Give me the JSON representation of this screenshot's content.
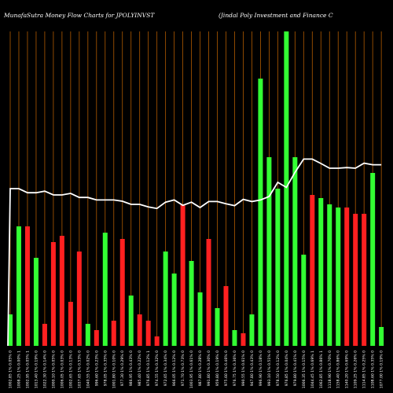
{
  "chart_data": {
    "type": "bar",
    "title": "MunafaSutra  Money Flow  Charts for JPOLYINVST",
    "subtitle": "(Jindal Poly Investment and Finance  C",
    "ylim": [
      0,
      100
    ],
    "grid": true,
    "categories": [
      "1002.85 1% 0.05% 0",
      "1008.25 1% 0.00% 1",
      "1002.95 1% 0.05% 1",
      "1013.40 1% 0.19% 0",
      "1022.30 1% 0.14% 0",
      "1000.10 1% 0.05% 0",
      "1006.05 1% 0.03% 0",
      "1002.65 1% 0.13% 0",
      "1037.65 1% 0.53% 0",
      "1040.55 1% 0.02% 0",
      "996.60 1% 0.23% 0",
      "978.05 1% 0.35% 0",
      "1001.80 1% 0.10% 0",
      "977.30 1% 0.29% 0",
      "986.95 1% 0.43% 0",
      "985.40 1% 0.22% 0",
      "976.85 1% 0.12% 1",
      "974.55 1% 0.32% 0",
      "972.65 1% 0.34% 0",
      "966.05 1% 0.12% 0",
      "971.70 1% 0.73% 0",
      "1003.95 1% 0.61% 0",
      "987.80 1% 0.28% 0",
      "991.80 1% 0.30% 0",
      "959.80 1% 0.19% 0",
      "975.60 1% 0.46% 0",
      "976.75 1% 0.36% 0",
      "990.55 1% 0.61% 0",
      "947.80 1% 0.43% 0",
      "996.90 1% 0.18% 0",
      "993.10 1% 0.51% 0",
      "978.50 1% 0.12% 0",
      "976.85 1% 0.04% 0",
      "979.80 1% 0.41% 0",
      "1006.35 1% 0.15% 0",
      "1044.45 1% 0.69% 1",
      "1062.85 1% 0.86% 1",
      "1118.90 1% 0.70% 0",
      "1158.40 1% 0.86% 0",
      "1140.20 1% 0.69% 0",
      "1109.25 1% 0.26% 0",
      "1114.85 1% 0.25% 0",
      "1108.60 1% 0.35% 0",
      "1077.00 1% 0.19% 0"
    ],
    "bar_colors": [
      "green",
      "green",
      "red",
      "green",
      "red",
      "red",
      "red",
      "red",
      "red",
      "green",
      "red",
      "green",
      "red",
      "red",
      "green",
      "red",
      "red",
      "red",
      "green",
      "green",
      "red",
      "green",
      "green",
      "red",
      "green",
      "red",
      "green",
      "red",
      "green",
      "green",
      "green",
      "green",
      "green",
      "green",
      "green",
      "red",
      "green",
      "green",
      "green",
      "red",
      "red",
      "red",
      "green",
      "green"
    ],
    "bar_values": [
      10,
      38,
      38,
      28,
      7,
      33,
      35,
      14,
      30,
      7,
      5,
      36,
      8,
      34,
      16,
      10,
      8,
      3,
      30,
      23,
      45,
      27,
      17,
      34,
      12,
      19,
      5,
      4,
      10,
      85,
      60,
      50,
      120,
      60,
      29,
      48,
      47,
      45,
      44,
      44,
      42,
      42,
      55,
      6
    ],
    "line_values": [
      50,
      50,
      48.7,
      48.7,
      49.2,
      48.0,
      48.0,
      48.5,
      47.2,
      47.2,
      46.4,
      46.4,
      46.4,
      46.0,
      45.0,
      45.0,
      44.2,
      43.7,
      45.7,
      46.4,
      44.7,
      45.7,
      44.0,
      45.9,
      45.9,
      45.2,
      44.6,
      46.6,
      45.9,
      46.4,
      47.5,
      52.0,
      50.4,
      55.2,
      59.4,
      59.4,
      58.0,
      56.5,
      56.5,
      56.7,
      56.5,
      58.1,
      57.6,
      57.6
    ],
    "colors": {
      "background": "#000000",
      "up": "#33ff33",
      "down": "#ff2020",
      "grid": "#b05a00",
      "line": "#ffffff",
      "text": "#ffffff"
    }
  }
}
